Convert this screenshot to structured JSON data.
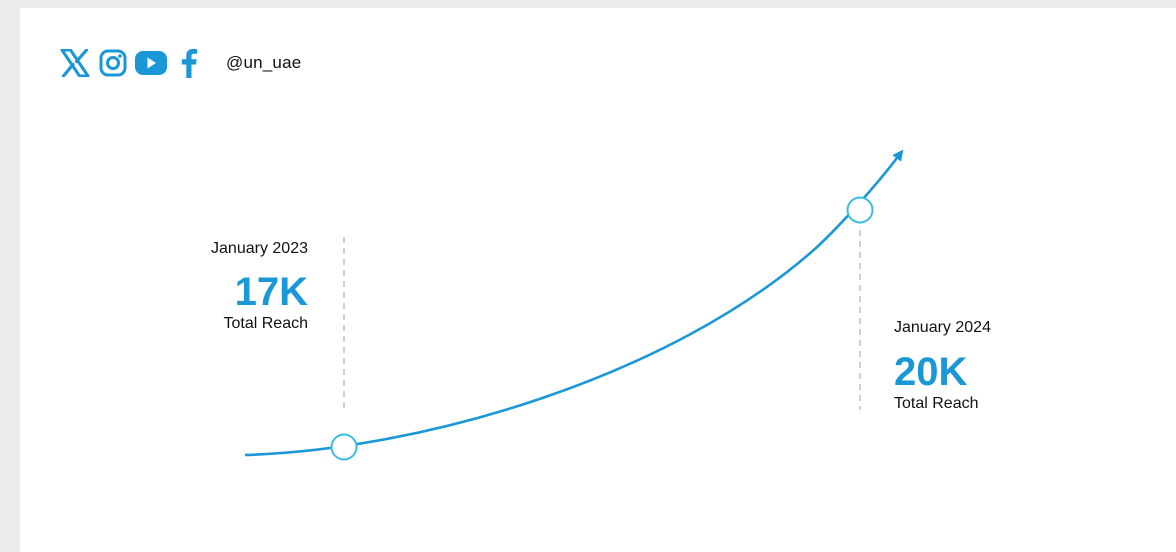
{
  "social": {
    "handle": "@un_uae",
    "icons": [
      "x-icon",
      "instagram-icon",
      "youtube-icon",
      "facebook-icon"
    ],
    "icon_color": "#1a97d6"
  },
  "colors": {
    "accent": "#1a97d6",
    "curve": "#1a97d6",
    "marker": "#3bbde0",
    "guide": "#cfcfcf"
  },
  "chart_data": {
    "type": "line",
    "title": "",
    "xlabel": "",
    "ylabel": "",
    "series": [
      {
        "x": [
          "January 2023",
          "January 2024"
        ],
        "values": [
          17000,
          20000
        ]
      }
    ],
    "annotations": [
      {
        "date": "January 2023",
        "value": "17K",
        "metric": "Total Reach"
      },
      {
        "date": "January 2024",
        "value": "20K",
        "metric": "Total Reach"
      }
    ]
  }
}
